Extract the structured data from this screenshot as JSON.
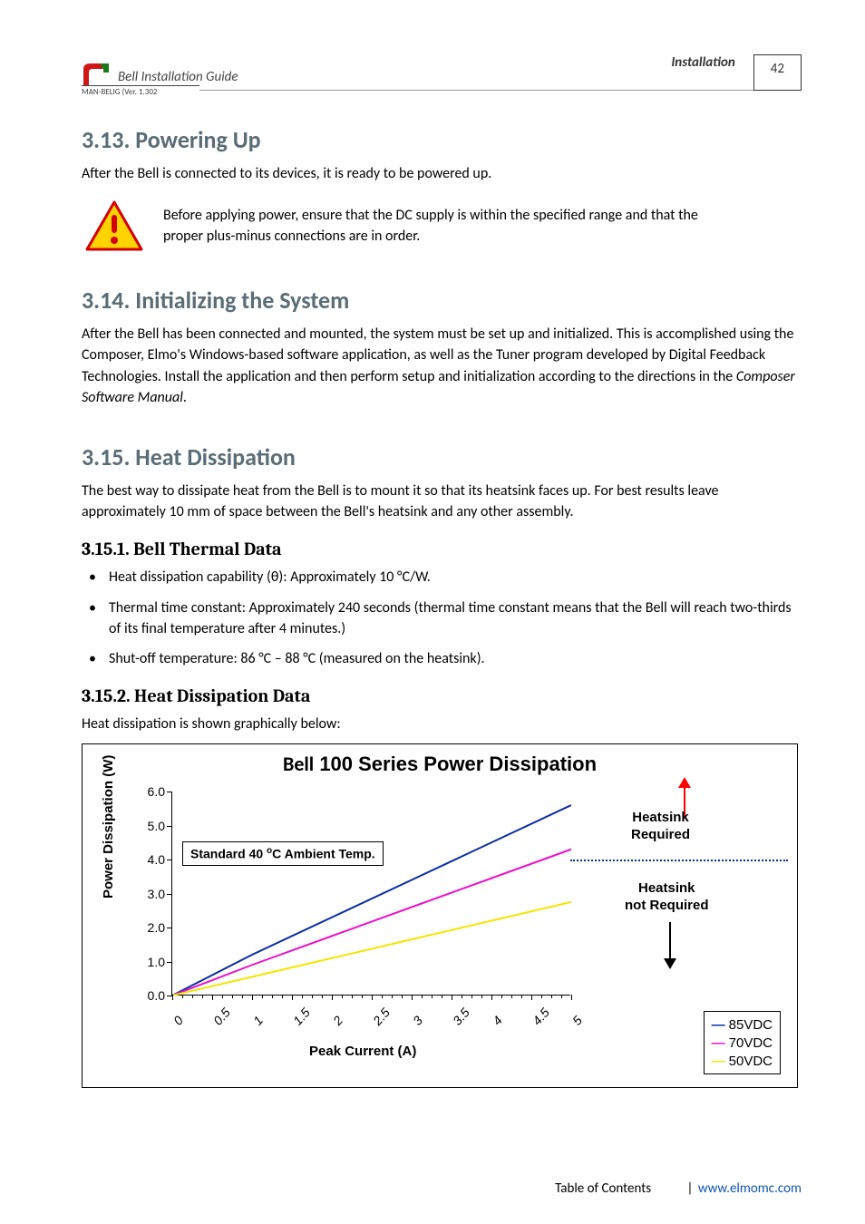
{
  "header": {
    "guide_title": "Bell Installation Guide",
    "section_label": "Installation",
    "page_number": "42",
    "doc_version": "MAN-BELIG (Ver. 1.302"
  },
  "sections": {
    "s313": {
      "heading": "3.13.  Powering Up",
      "body": "After the Bell is connected to its devices, it is ready to be powered up.",
      "warning": "Before applying power, ensure that the DC supply is within the specified range and that the proper plus-minus connections are in order."
    },
    "s314": {
      "heading": "3.14.  Initializing the System",
      "body": "After the Bell has been connected and mounted, the system must be set up and initialized. This is accomplished using the Composer, Elmo's Windows-based software application, as well as the Tuner program developed by Digital Feedback Technologies. Install the application and then perform setup and initialization according to the directions in the ",
      "body_em": "Composer Software Manual",
      "body_tail": "."
    },
    "s315": {
      "heading": "3.15.  Heat Dissipation",
      "body": "The best way to dissipate heat from the Bell is to mount it so that its heatsink faces up. For best results leave approximately 10 mm of space between the Bell's heatsink and any other assembly."
    },
    "s3151": {
      "heading": "3.15.1.    Bell Thermal Data",
      "bullets": [
        "Heat dissipation capability (θ): Approximately 10 °C/W.",
        "Thermal time constant: Approximately 240 seconds (thermal time constant means that the Bell will reach two-thirds of its final temperature after 4 minutes.)",
        "Shut-off temperature: 86 °C – 88 °C (measured on the heatsink)."
      ]
    },
    "s3152": {
      "heading": "3.15.2.    Heat Dissipation Data",
      "body": "Heat dissipation is shown graphically below:"
    }
  },
  "chart": {
    "title_prefix": "Bell",
    "title_rest": " 100 Series Power Dissipation",
    "ylabel": "Power Dissipation (W)",
    "xlabel": "Peak Current (A)",
    "ambient_label_pre": "Standard 40 ",
    "ambient_label_sup": "o",
    "ambient_label_post": "C Ambient Temp.",
    "heatsink_req_l1": "Heatsink",
    "heatsink_req_l2": "Required",
    "heatsink_notreq_l1": "Heatsink",
    "heatsink_notreq_l2": "not Required",
    "yticks": [
      "0.0",
      "1.0",
      "2.0",
      "3.0",
      "4.0",
      "5.0",
      "6.0"
    ],
    "xticks": [
      "0",
      "0.5",
      "1",
      "1.5",
      "2",
      "2.5",
      "3",
      "3.5",
      "4",
      "4.5",
      "5"
    ],
    "ylim": [
      0,
      6
    ],
    "xlim": [
      0,
      5
    ],
    "dotted_y": 4.0,
    "series": [
      {
        "name": "85VDC",
        "color": "#0b2da0",
        "points": [
          [
            0,
            0
          ],
          [
            1,
            1.2
          ],
          [
            2,
            2.3
          ],
          [
            3,
            3.4
          ],
          [
            4,
            4.5
          ],
          [
            5,
            5.6
          ]
        ]
      },
      {
        "name": "70VDC",
        "color": "#e815c7",
        "points": [
          [
            0,
            0
          ],
          [
            1,
            0.9
          ],
          [
            2,
            1.75
          ],
          [
            3,
            2.6
          ],
          [
            4,
            3.45
          ],
          [
            5,
            4.3
          ]
        ]
      },
      {
        "name": "50VDC",
        "color": "#f2e600",
        "points": [
          [
            0,
            0
          ],
          [
            1,
            0.55
          ],
          [
            2,
            1.1
          ],
          [
            3,
            1.65
          ],
          [
            4,
            2.2
          ],
          [
            5,
            2.75
          ]
        ]
      }
    ],
    "legend": [
      {
        "label": "85VDC",
        "color": "#0b2da0"
      },
      {
        "label": "70VDC",
        "color": "#e815c7"
      },
      {
        "label": "50VDC",
        "color": "#f2e600"
      }
    ],
    "arrow_up_color": "#ff0000",
    "arrow_down_color": "#000000"
  },
  "footer": {
    "toc": "Table of Contents",
    "sep": "|",
    "link": "www.elmomc.com"
  }
}
